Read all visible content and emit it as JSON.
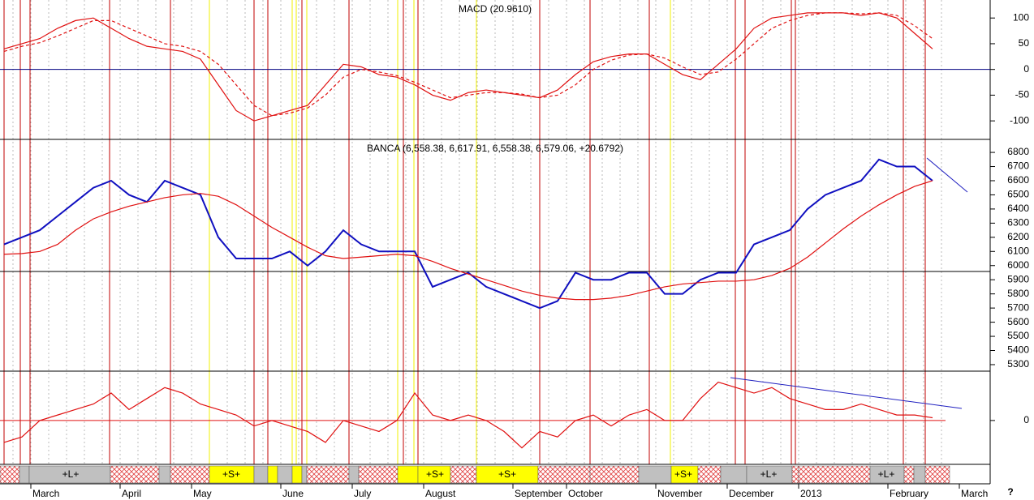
{
  "chart_data": [
    {
      "type": "line",
      "title": "MACD (20.9610)",
      "ylim": [
        -136,
        135
      ],
      "yticks": [
        -100,
        -50,
        0,
        50,
        100
      ],
      "series": [
        {
          "name": "MACD",
          "color": "#e01010",
          "style": "solid",
          "values": [
            40,
            50,
            60,
            80,
            95,
            100,
            80,
            60,
            45,
            40,
            35,
            20,
            -30,
            -80,
            -100,
            -90,
            -80,
            -70,
            -30,
            10,
            5,
            -10,
            -15,
            -30,
            -50,
            -60,
            -45,
            -40,
            -45,
            -50,
            -55,
            -40,
            -10,
            15,
            25,
            30,
            30,
            10,
            -10,
            -20,
            10,
            40,
            80,
            100,
            105,
            110,
            110,
            110,
            105,
            110,
            100,
            70,
            40,
            null
          ]
        },
        {
          "name": "Signal",
          "color": "#e01010",
          "style": "dashed",
          "values": [
            35,
            45,
            52,
            65,
            80,
            95,
            95,
            80,
            65,
            50,
            45,
            35,
            10,
            -30,
            -70,
            -90,
            -85,
            -75,
            -50,
            -15,
            0,
            -5,
            -12,
            -25,
            -40,
            -55,
            -50,
            -45,
            -45,
            -48,
            -55,
            -50,
            -30,
            0,
            18,
            28,
            30,
            22,
            5,
            -10,
            -5,
            20,
            50,
            80,
            95,
            105,
            110,
            110,
            108,
            110,
            105,
            85,
            60,
            null
          ]
        }
      ]
    },
    {
      "type": "line",
      "title": "BANCA (6,558.38, 6,617.91, 6,558.38, 6,579.06, +20.6792)",
      "ylim": [
        5254,
        6892
      ],
      "yticks": [
        5300,
        5400,
        5500,
        5600,
        5700,
        5800,
        5900,
        6000,
        6100,
        6200,
        6300,
        6400,
        6500,
        6600,
        6700,
        6800
      ],
      "series": [
        {
          "name": "BANCA",
          "color": "#1010c0",
          "style": "solid",
          "values": [
            6150,
            6200,
            6250,
            6350,
            6450,
            6550,
            6600,
            6500,
            6450,
            6600,
            6550,
            6500,
            6200,
            6050,
            6050,
            6050,
            6100,
            6000,
            6100,
            6250,
            6150,
            6100,
            6100,
            6100,
            5850,
            5900,
            5950,
            5850,
            5800,
            5750,
            5700,
            5750,
            5950,
            5900,
            5900,
            5950,
            5950,
            5800,
            5800,
            5900,
            5950,
            5950,
            6150,
            6200,
            6250,
            6400,
            6500,
            6550,
            6600,
            6750,
            6700,
            6700,
            6600,
            null
          ]
        },
        {
          "name": "Moving average",
          "color": "#e01010",
          "style": "solid",
          "values": [
            6080,
            6085,
            6100,
            6150,
            6250,
            6330,
            6380,
            6420,
            6450,
            6480,
            6500,
            6510,
            6490,
            6430,
            6350,
            6270,
            6200,
            6130,
            6070,
            6050,
            6060,
            6070,
            6080,
            6070,
            6030,
            5980,
            5940,
            5900,
            5860,
            5820,
            5790,
            5770,
            5760,
            5760,
            5770,
            5790,
            5820,
            5850,
            5870,
            5880,
            5890,
            5890,
            5900,
            5930,
            5980,
            6060,
            6160,
            6260,
            6350,
            6430,
            6500,
            6560,
            6600,
            null
          ]
        }
      ]
    },
    {
      "type": "line",
      "ylim": [
        -80,
        90
      ],
      "yticks": [
        0
      ],
      "categories": [
        null,
        "March",
        null,
        null,
        null,
        null,
        "April",
        null,
        null,
        null,
        "May",
        null,
        null,
        null,
        null,
        "June",
        null,
        null,
        null,
        "July",
        null,
        null,
        null,
        "August",
        null,
        null,
        null,
        null,
        "September",
        null,
        null,
        "October",
        null,
        null,
        null,
        null,
        "November",
        null,
        null,
        null,
        "December",
        null,
        null,
        null,
        "2013",
        null,
        null,
        null,
        null,
        "February",
        null,
        null,
        null,
        "March"
      ],
      "series": [
        {
          "name": "Oscillator",
          "color": "#e01010",
          "style": "solid",
          "values": [
            -40,
            -30,
            0,
            10,
            20,
            30,
            50,
            20,
            40,
            60,
            50,
            30,
            20,
            10,
            -10,
            0,
            -10,
            -20,
            -40,
            0,
            -10,
            -20,
            0,
            50,
            10,
            0,
            10,
            0,
            -20,
            -50,
            -20,
            -30,
            0,
            10,
            -10,
            10,
            20,
            0,
            0,
            40,
            70,
            60,
            50,
            60,
            40,
            30,
            20,
            20,
            30,
            20,
            10,
            10,
            5,
            null
          ]
        }
      ]
    }
  ],
  "signal_bar": {
    "labels": [
      "+L+",
      "+S+",
      "+S+",
      "+S+",
      "+S+",
      "+L+",
      "+L+"
    ]
  },
  "help": "?"
}
